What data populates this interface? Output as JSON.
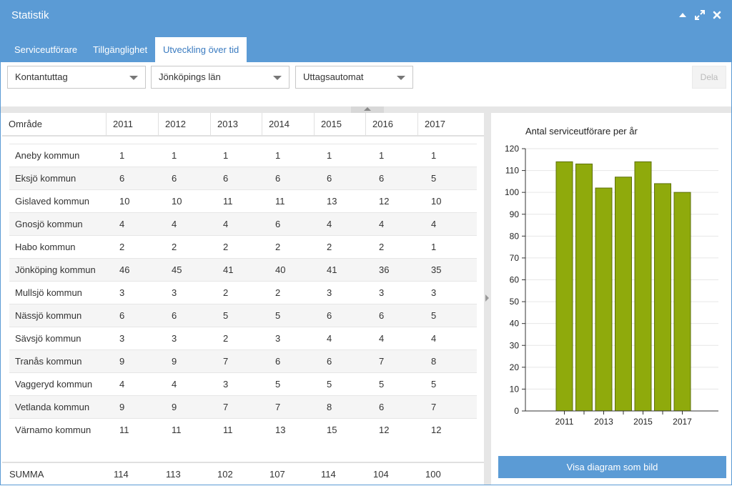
{
  "window": {
    "title": "Statistik"
  },
  "tabs": [
    {
      "label": "Serviceutförare"
    },
    {
      "label": "Tillgänglighet"
    },
    {
      "label": "Utveckling över tid"
    }
  ],
  "filters": {
    "service_type": "Kontantuttag",
    "region": "Jönköpings län",
    "provider_type": "Uttagsautomat",
    "share_label": "Dela"
  },
  "table": {
    "headers": [
      "Område",
      "2011",
      "2012",
      "2013",
      "2014",
      "2015",
      "2016",
      "2017"
    ],
    "rows": [
      [
        "Aneby kommun",
        "1",
        "1",
        "1",
        "1",
        "1",
        "1",
        "1"
      ],
      [
        "Eksjö kommun",
        "6",
        "6",
        "6",
        "6",
        "6",
        "6",
        "5"
      ],
      [
        "Gislaved kommun",
        "10",
        "10",
        "11",
        "11",
        "13",
        "12",
        "10"
      ],
      [
        "Gnosjö kommun",
        "4",
        "4",
        "4",
        "6",
        "4",
        "4",
        "4"
      ],
      [
        "Habo kommun",
        "2",
        "2",
        "2",
        "2",
        "2",
        "2",
        "1"
      ],
      [
        "Jönköping kommun",
        "46",
        "45",
        "41",
        "40",
        "41",
        "36",
        "35"
      ],
      [
        "Mullsjö kommun",
        "3",
        "3",
        "2",
        "2",
        "3",
        "3",
        "3"
      ],
      [
        "Nässjö kommun",
        "6",
        "6",
        "5",
        "5",
        "6",
        "6",
        "5"
      ],
      [
        "Sävsjö kommun",
        "3",
        "3",
        "2",
        "3",
        "4",
        "4",
        "4"
      ],
      [
        "Tranås kommun",
        "9",
        "9",
        "7",
        "6",
        "6",
        "7",
        "8"
      ],
      [
        "Vaggeryd kommun",
        "4",
        "4",
        "3",
        "5",
        "5",
        "5",
        "5"
      ],
      [
        "Vetlanda kommun",
        "9",
        "9",
        "7",
        "7",
        "8",
        "6",
        "7"
      ],
      [
        "Värnamo kommun",
        "11",
        "11",
        "11",
        "13",
        "15",
        "12",
        "12"
      ]
    ],
    "summary": [
      "SUMMA",
      "114",
      "113",
      "102",
      "107",
      "114",
      "104",
      "100"
    ]
  },
  "chart_button_label": "Visa diagram som bild",
  "colors": {
    "header_blue": "#5b9bd5",
    "bar_fill": "#8faa0c",
    "bar_stroke": "#5d700a"
  },
  "chart_data": {
    "type": "bar",
    "title": "Antal serviceutförare per år",
    "categories": [
      "2011",
      "2012",
      "2013",
      "2014",
      "2015",
      "2016",
      "2017"
    ],
    "values": [
      114,
      113,
      102,
      107,
      114,
      104,
      100
    ],
    "x_tick_labels": [
      "2011",
      "",
      "2013",
      "",
      "2015",
      "",
      "2017"
    ],
    "y_ticks": [
      0,
      10,
      20,
      30,
      40,
      50,
      60,
      70,
      80,
      90,
      100,
      110,
      120
    ],
    "ylim": [
      0,
      120
    ],
    "xlabel": "",
    "ylabel": "",
    "grid": true,
    "legend": "none"
  }
}
